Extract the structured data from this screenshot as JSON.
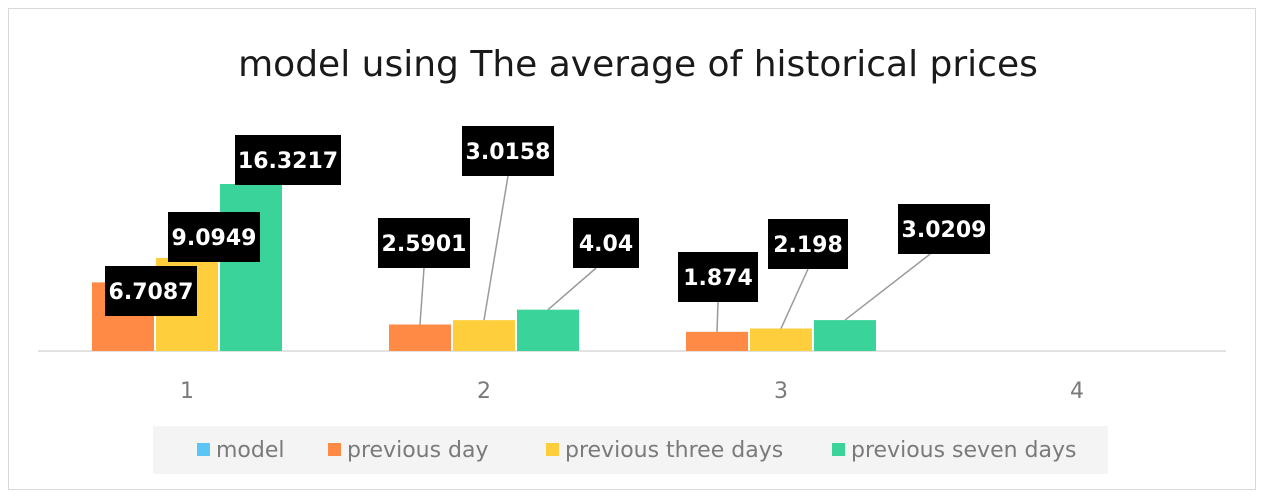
{
  "chart_data": {
    "type": "bar",
    "title": "model using The average of historical prices",
    "xlabel": "",
    "ylabel": "",
    "categories": [
      "1",
      "2",
      "3",
      "4"
    ],
    "series": [
      {
        "name": "model",
        "color": "#5bc6f5",
        "values": [
          null,
          null,
          null,
          null
        ],
        "labels": [
          null,
          null,
          null,
          null
        ]
      },
      {
        "name": "previous day",
        "color": "#ff8a45",
        "values": [
          6.7087,
          2.5901,
          1.874,
          null
        ],
        "labels": [
          "6.7087",
          "2.5901",
          "1.874",
          null
        ]
      },
      {
        "name": "previous three days",
        "color": "#ffce3d",
        "values": [
          9.0949,
          3.0158,
          2.198,
          null
        ],
        "labels": [
          "9.0949",
          "3.0158",
          "2.198",
          null
        ]
      },
      {
        "name": "previous seven days",
        "color": "#3ad49b",
        "values": [
          16.3217,
          4.04,
          3.0209,
          null
        ],
        "labels": [
          "16.3217",
          "4.04",
          "3.0209",
          null
        ]
      }
    ],
    "legend_position": "bottom",
    "grid": false,
    "data_label_style": "white bold text on black boxes"
  }
}
